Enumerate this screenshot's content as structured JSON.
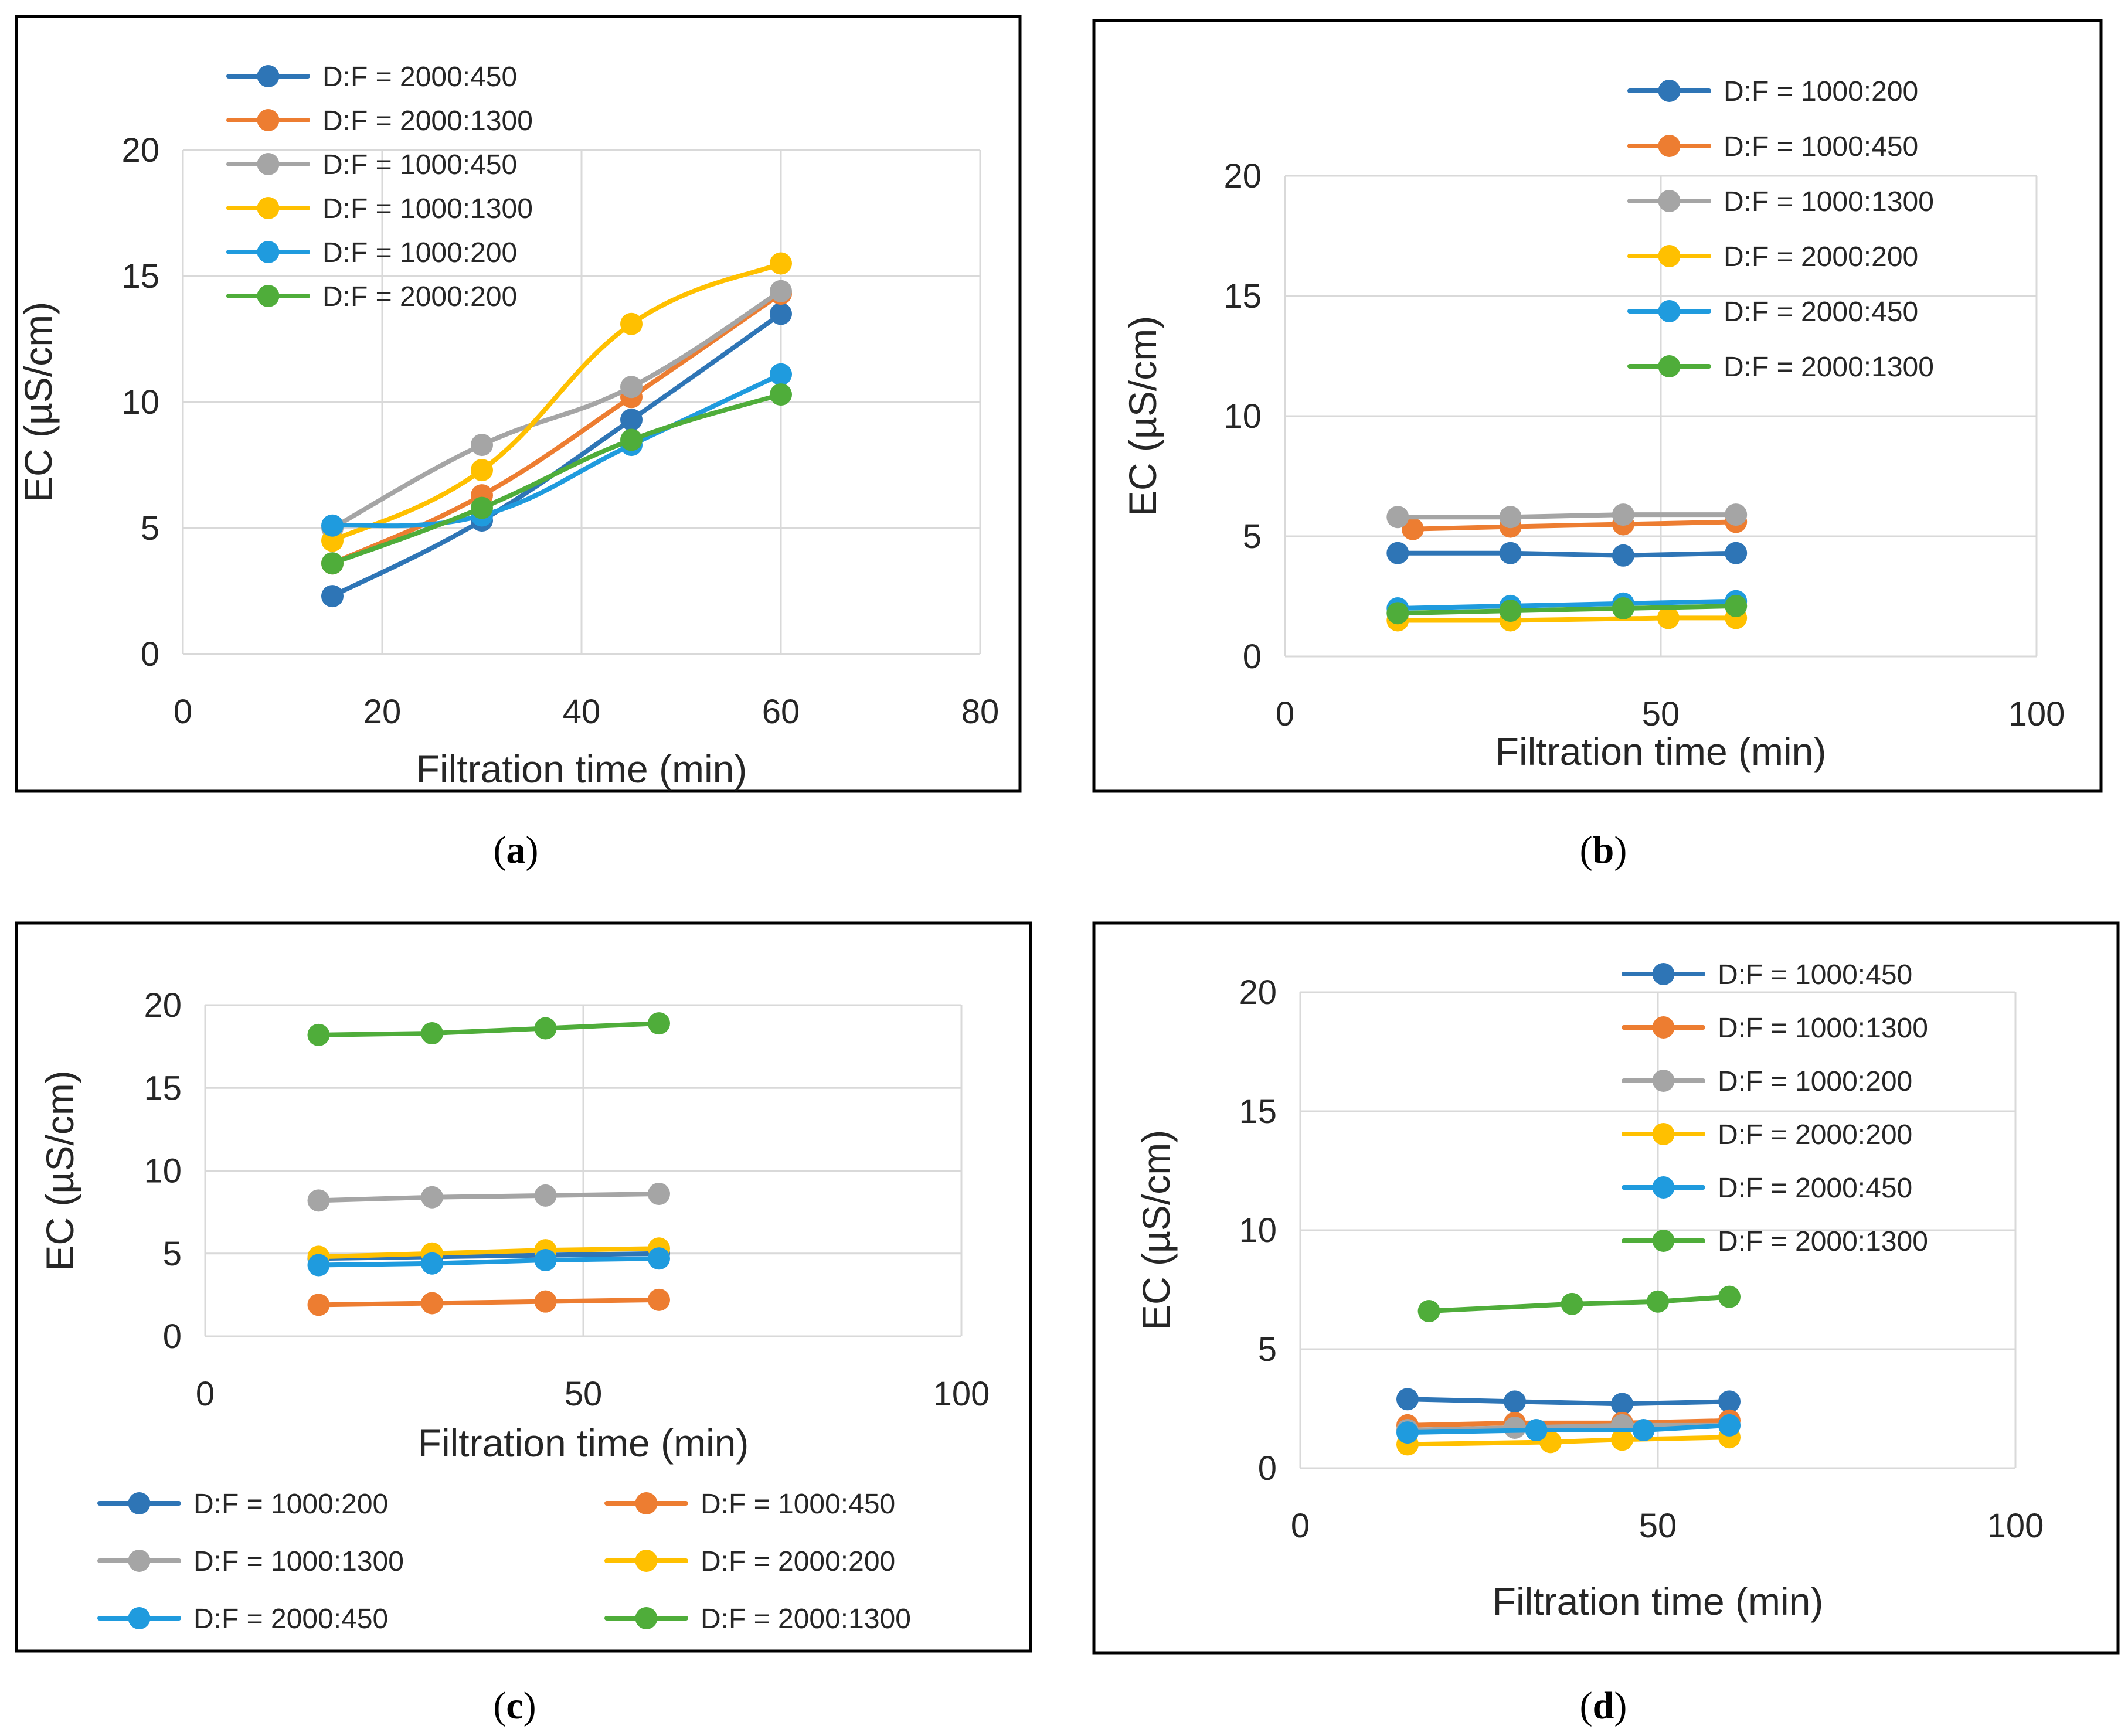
{
  "figure": {
    "panels": [
      {
        "id": "a",
        "caption_letter": "a",
        "chart_data": {
          "type": "line",
          "xlabel": "Filtration time (min)",
          "ylabel": "EC (µS/cm)",
          "xlim": [
            0,
            80
          ],
          "ylim": [
            0,
            20
          ],
          "xticks": [
            "0",
            "20",
            "40",
            "60",
            "80"
          ],
          "yticks": [
            "0",
            "5",
            "10",
            "15",
            "20"
          ],
          "smooth": true,
          "legend_position": "top-left",
          "legend_columns": 1,
          "series": [
            {
              "name": "D:F = 2000:450",
              "color": "#2e75b6",
              "x": [
                15,
                30,
                45,
                60
              ],
              "y": [
                2.3,
                5.3,
                9.3,
                13.5
              ]
            },
            {
              "name": "D:F = 2000:1300",
              "color": "#ed7d31",
              "x": [
                15,
                30,
                45,
                60
              ],
              "y": [
                3.6,
                6.3,
                10.2,
                14.3
              ]
            },
            {
              "name": "D:F = 1000:450",
              "color": "#a5a5a5",
              "x": [
                15,
                30,
                45,
                60
              ],
              "y": [
                5.0,
                8.3,
                10.6,
                14.4
              ]
            },
            {
              "name": "D:F = 1000:1300",
              "color": "#ffc000",
              "x": [
                15,
                30,
                45,
                60
              ],
              "y": [
                4.5,
                7.3,
                13.1,
                15.5
              ]
            },
            {
              "name": "D:F = 1000:200",
              "color": "#1f9bde",
              "x": [
                15,
                30,
                45,
                60
              ],
              "y": [
                5.1,
                5.5,
                8.3,
                11.1
              ]
            },
            {
              "name": "D:F = 2000:200",
              "color": "#4fad3a",
              "x": [
                15,
                30,
                45,
                60
              ],
              "y": [
                3.6,
                5.8,
                8.5,
                10.3
              ]
            }
          ]
        }
      },
      {
        "id": "b",
        "caption_letter": "b",
        "chart_data": {
          "type": "line",
          "xlabel": "Filtration time (min)",
          "ylabel": "EC (µS/cm)",
          "xlim": [
            0,
            100
          ],
          "ylim": [
            0,
            20
          ],
          "xticks": [
            "0",
            "50",
            "100"
          ],
          "yticks": [
            "0",
            "5",
            "10",
            "15",
            "20"
          ],
          "smooth": false,
          "legend_position": "top-right",
          "legend_columns": 1,
          "series": [
            {
              "name": "D:F = 1000:200",
              "color": "#2e75b6",
              "x": [
                15,
                30,
                45,
                60
              ],
              "y": [
                4.3,
                4.3,
                4.2,
                4.3
              ]
            },
            {
              "name": "D:F = 1000:450",
              "color": "#ed7d31",
              "x": [
                17,
                30,
                45,
                60
              ],
              "y": [
                5.3,
                5.4,
                5.5,
                5.6
              ]
            },
            {
              "name": "D:F = 1000:1300",
              "color": "#a5a5a5",
              "x": [
                15,
                30,
                45,
                60
              ],
              "y": [
                5.8,
                5.8,
                5.9,
                5.9
              ]
            },
            {
              "name": "D:F = 2000:200",
              "color": "#ffc000",
              "x": [
                15,
                30,
                51,
                60
              ],
              "y": [
                1.5,
                1.5,
                1.6,
                1.6
              ]
            },
            {
              "name": "D:F = 2000:450",
              "color": "#1f9bde",
              "x": [
                15,
                30,
                45,
                60
              ],
              "y": [
                2.0,
                2.1,
                2.2,
                2.3
              ]
            },
            {
              "name": "D:F = 2000:1300",
              "color": "#4fad3a",
              "x": [
                15,
                30,
                45,
                60
              ],
              "y": [
                1.8,
                1.9,
                2.0,
                2.1
              ]
            }
          ]
        }
      },
      {
        "id": "c",
        "caption_letter": "c",
        "chart_data": {
          "type": "line",
          "xlabel": "Filtration time (min)",
          "ylabel": "EC (µS/cm)",
          "xlim": [
            0,
            100
          ],
          "ylim": [
            0,
            20
          ],
          "xticks": [
            "0",
            "50",
            "100"
          ],
          "yticks": [
            "0",
            "5",
            "10",
            "15",
            "20"
          ],
          "smooth": false,
          "legend_position": "bottom",
          "legend_columns": 2,
          "series": [
            {
              "name": "D:F = 1000:200",
              "color": "#2e75b6",
              "x": [
                15,
                30,
                45,
                60
              ],
              "y": [
                4.7,
                4.8,
                4.9,
                5.0
              ]
            },
            {
              "name": "D:F = 1000:450",
              "color": "#ed7d31",
              "x": [
                15,
                30,
                45,
                60
              ],
              "y": [
                1.9,
                2.0,
                2.1,
                2.2
              ]
            },
            {
              "name": "D:F = 1000:1300",
              "color": "#a5a5a5",
              "x": [
                15,
                30,
                45,
                60
              ],
              "y": [
                8.2,
                8.4,
                8.5,
                8.6
              ]
            },
            {
              "name": "D:F = 2000:200",
              "color": "#ffc000",
              "x": [
                15,
                30,
                45,
                60
              ],
              "y": [
                4.8,
                5.0,
                5.2,
                5.3
              ]
            },
            {
              "name": "D:F = 2000:450",
              "color": "#1f9bde",
              "x": [
                15,
                30,
                45,
                60
              ],
              "y": [
                4.3,
                4.4,
                4.6,
                4.7
              ]
            },
            {
              "name": "D:F = 2000:1300",
              "color": "#4fad3a",
              "x": [
                15,
                30,
                45,
                60
              ],
              "y": [
                18.2,
                18.3,
                18.6,
                18.9
              ]
            }
          ]
        }
      },
      {
        "id": "d",
        "caption_letter": "d",
        "chart_data": {
          "type": "line",
          "xlabel": "Filtration time (min)",
          "ylabel": "EC (µS/cm)",
          "xlim": [
            0,
            100
          ],
          "ylim": [
            0,
            20
          ],
          "xticks": [
            "0",
            "50",
            "100"
          ],
          "yticks": [
            "0",
            "5",
            "10",
            "15",
            "20"
          ],
          "smooth": false,
          "legend_position": "top-right",
          "legend_columns": 1,
          "series": [
            {
              "name": "D:F = 1000:450",
              "color": "#2e75b6",
              "x": [
                15,
                30,
                45,
                60
              ],
              "y": [
                2.9,
                2.8,
                2.7,
                2.8
              ]
            },
            {
              "name": "D:F = 1000:1300",
              "color": "#ed7d31",
              "x": [
                15,
                30,
                45,
                60
              ],
              "y": [
                1.8,
                1.9,
                1.9,
                2.0
              ]
            },
            {
              "name": "D:F = 1000:200",
              "color": "#a5a5a5",
              "x": [
                15,
                30,
                45,
                60
              ],
              "y": [
                1.6,
                1.7,
                1.8,
                1.8
              ]
            },
            {
              "name": "D:F = 2000:200",
              "color": "#ffc000",
              "x": [
                15,
                35,
                45,
                60
              ],
              "y": [
                1.0,
                1.1,
                1.2,
                1.3
              ]
            },
            {
              "name": "D:F = 2000:450",
              "color": "#1f9bde",
              "x": [
                15,
                33,
                48,
                60
              ],
              "y": [
                1.5,
                1.6,
                1.6,
                1.8
              ]
            },
            {
              "name": "D:F = 2000:1300",
              "color": "#4fad3a",
              "x": [
                18,
                38,
                50,
                60
              ],
              "y": [
                6.6,
                6.9,
                7.0,
                7.2
              ]
            }
          ]
        }
      }
    ]
  }
}
